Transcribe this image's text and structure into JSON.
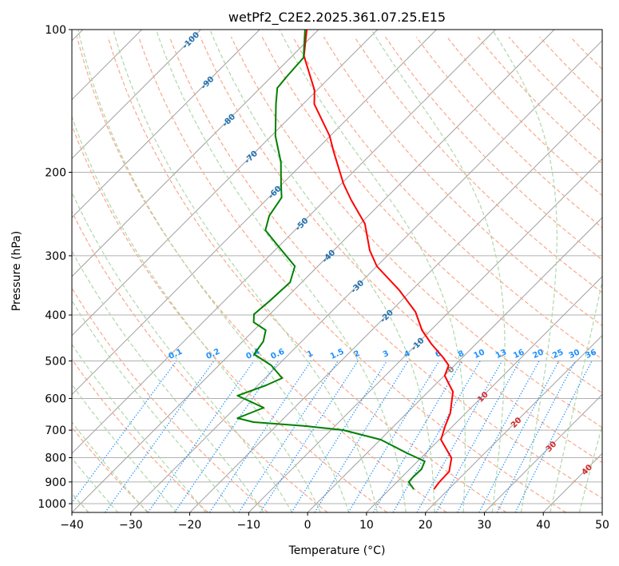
{
  "chart_data": {
    "type": "line",
    "title": "wetPf2_C2E2.2025.361.07.25.E15",
    "xlabel": "Temperature (°C)",
    "ylabel": "Pressure (hPa)",
    "xlim": [
      -40,
      50
    ],
    "ylim": [
      1044,
      100
    ],
    "grid": true,
    "xticks": [
      -40,
      -30,
      -20,
      -10,
      0,
      10,
      20,
      30,
      40,
      50
    ],
    "xtick_labels": [
      "−40",
      "−30",
      "−20",
      "−10",
      "0",
      "10",
      "20",
      "30",
      "40",
      "50"
    ],
    "yticks": [
      100,
      200,
      300,
      400,
      500,
      600,
      700,
      800,
      900,
      1000
    ],
    "ytick_labels": [
      "100",
      "200",
      "300",
      "400",
      "500",
      "600",
      "700",
      "800",
      "900",
      "1000"
    ],
    "series": [
      {
        "name": "Temperature",
        "color": "#ff0000",
        "pressure": [
          932.4,
          900.6,
          855.9,
          801.4,
          733.0,
          686.2,
          644.8,
          580.6,
          537.3,
          510.9,
          491.4,
          460.1,
          430.6,
          393.9,
          354.7,
          315.6,
          292.1,
          256.9,
          228.7,
          211.6,
          181.1,
          167.6,
          143.6,
          134.3,
          113.7,
          100
        ],
        "values": [
          17.5,
          17.2,
          17.1,
          15.2,
          10.3,
          8.7,
          7.4,
          4.2,
          0.1,
          -1.0,
          -3.3,
          -7.6,
          -11.5,
          -15.7,
          -22.1,
          -30.0,
          -33.9,
          -39.2,
          -45.6,
          -49.6,
          -56.7,
          -60.1,
          -68.1,
          -70.4,
          -78.0,
          -82.0
        ]
      },
      {
        "name": "Dewpoint",
        "color": "#008000",
        "pressure": [
          932.4,
          900.6,
          879.4,
          846.0,
          813.9,
          783.0,
          733.0,
          699.7,
          686.2,
          673.0,
          660.0,
          627.6,
          591.9,
          562.9,
          543.6,
          510.9,
          483.9,
          454.8,
          430.6,
          414.3,
          398.5,
          374.4,
          341.2,
          315.6,
          288.7,
          265.0,
          247.2,
          226.1,
          211.6,
          190.5,
          167.6,
          143.6,
          132.8,
          126.2,
          114.6,
          100
        ],
        "values": [
          14.1,
          12.0,
          11.9,
          12.0,
          11.2,
          6.9,
          0.1,
          -7.9,
          -14.9,
          -24.5,
          -27.9,
          -25.2,
          -31.7,
          -28.6,
          -27.1,
          -31.1,
          -35.9,
          -36.5,
          -38.0,
          -41.4,
          -42.7,
          -42.3,
          -42.0,
          -43.9,
          -49.6,
          -55.0,
          -56.8,
          -57.8,
          -60.2,
          -63.9,
          -69.3,
          -74.6,
          -77.1,
          -77.4,
          -77.8,
          -82.3
        ]
      }
    ],
    "isotherm_labels": [
      "-100",
      "-90",
      "-80",
      "-70",
      "-60",
      "-50",
      "-40",
      "-30",
      "-20",
      "-10",
      "0",
      "10",
      "20",
      "30",
      "40"
    ],
    "isotherm_label_values": [
      -100,
      -90,
      -80,
      -70,
      -60,
      -50,
      -40,
      -30,
      -20,
      -10,
      0,
      10,
      20,
      30,
      40
    ],
    "mixing_ratio_labels": [
      "0.1",
      "0.2",
      "0.4",
      "0.6",
      "1",
      "1.5",
      "2",
      "3",
      "4",
      "6",
      "8",
      "10",
      "13",
      "16",
      "20",
      "25",
      "30",
      "36"
    ],
    "mixing_ratio_values": [
      0.1,
      0.2,
      0.4,
      0.6,
      1,
      1.5,
      2,
      3,
      4,
      6,
      8,
      10,
      13,
      16,
      20,
      25,
      30,
      36
    ],
    "mixing_ratio_top_hpa": 500,
    "dry_adiabat_t0_range_c": [
      -100,
      250,
      10
    ],
    "moist_adiabat_t0_range_c": [
      -40,
      45,
      5
    ],
    "colors": {
      "isotherm": "#a0a0a0",
      "dry_adiabat": "#f9a88a",
      "moist_adiabat": "#aed8a8",
      "mixing_ratio": "#1e90ff",
      "label_negative": "#1f6fb0",
      "label_zero": "#808080",
      "label_positive": "#d62728"
    }
  }
}
